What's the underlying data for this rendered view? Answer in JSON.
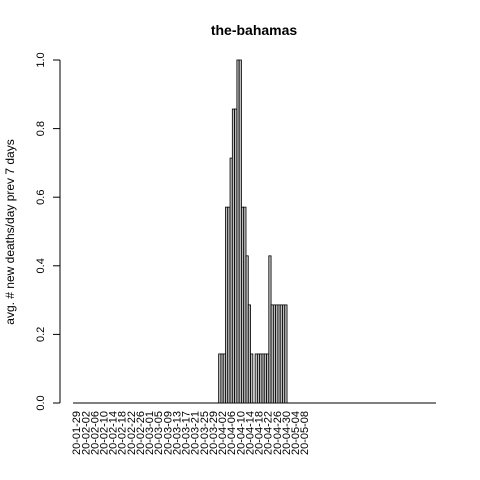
{
  "chart_data": {
    "type": "bar",
    "title": "the-bahamas",
    "xlabel": "",
    "ylabel": "avg. # new deaths/day prev  7  days",
    "ylim": [
      0,
      1.0
    ],
    "yticks": [
      "0.0",
      "0.2",
      "0.4",
      "0.6",
      "0.8",
      "1.0"
    ],
    "xtick_labels": [
      "20-01-29",
      "20-02-02",
      "20-02-06",
      "20-02-10",
      "20-02-14",
      "20-02-18",
      "20-02-22",
      "20-02-26",
      "20-03-01",
      "20-03-05",
      "20-03-09",
      "20-03-13",
      "20-03-17",
      "20-03-21",
      "20-03-25",
      "20-03-29",
      "20-04-02",
      "20-04-06",
      "20-04-10",
      "20-04-14",
      "20-04-18",
      "20-04-22",
      "20-04-26",
      "20-04-30",
      "20-05-04",
      "20-05-08"
    ],
    "x_start": "2020-01-29",
    "values": [
      0,
      0,
      0,
      0,
      0,
      0,
      0,
      0,
      0,
      0,
      0,
      0,
      0,
      0,
      0,
      0,
      0,
      0,
      0,
      0,
      0,
      0,
      0,
      0,
      0,
      0,
      0,
      0,
      0,
      0,
      0,
      0,
      0,
      0,
      0,
      0,
      0,
      0,
      0,
      0,
      0,
      0,
      0,
      0,
      0,
      0,
      0,
      0,
      0,
      0,
      0,
      0,
      0,
      0,
      0,
      0,
      0,
      0,
      0,
      0,
      0,
      0,
      0,
      0.143,
      0.143,
      0.143,
      0.571,
      0.571,
      0.714,
      0.857,
      0.857,
      1.0,
      1.0,
      0.571,
      0.571,
      0.429,
      0.286,
      0.143,
      0,
      0.143,
      0.143,
      0.143,
      0.143,
      0.143,
      0.143,
      0.429,
      0.286,
      0.286,
      0.286,
      0.286,
      0.286,
      0.286,
      0.286,
      0,
      0,
      0,
      0,
      0,
      0,
      0,
      0,
      0,
      0,
      0,
      0
    ]
  }
}
